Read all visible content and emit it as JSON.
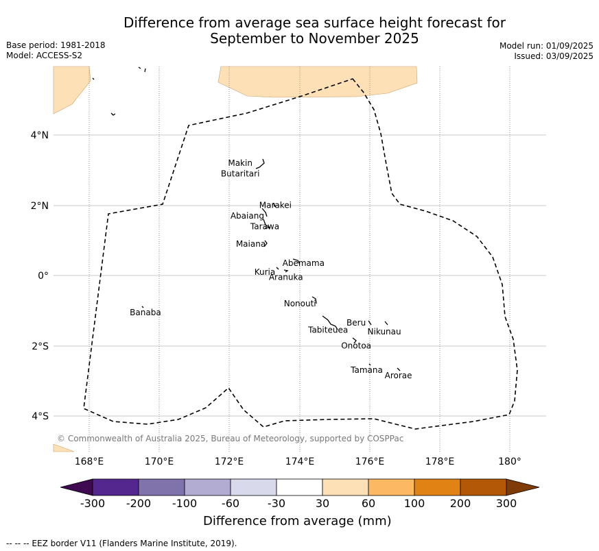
{
  "title_line1": "Difference from average sea surface height forecast for",
  "title_line2": "September to November 2025",
  "base_period": "Base period: 1981-2018",
  "model": "Model: ACCESS-S2",
  "model_run": "Model run: 01/09/2025",
  "issued": "Issued: 03/09/2025",
  "copyright": "© Commonwealth of Australia 2025, Bureau of Meteorology, supported by COSPPac",
  "lon_ticks": [
    "168°E",
    "170°E",
    "172°E",
    "174°E",
    "176°E",
    "178°E",
    "180°"
  ],
  "lat_ticks": [
    "4°N",
    "2°N",
    "0°",
    "2°S",
    "4°S"
  ],
  "places": [
    {
      "name": "Makin",
      "lon": 172.3,
      "lat": 3.2
    },
    {
      "name": "Butaritari",
      "lon": 172.3,
      "lat": 2.9
    },
    {
      "name": "Marakei",
      "lon": 173.3,
      "lat": 2.0
    },
    {
      "name": "Abaiang",
      "lon": 172.5,
      "lat": 1.7
    },
    {
      "name": "Tarawa",
      "lon": 173.0,
      "lat": 1.4
    },
    {
      "name": "Maiana",
      "lon": 172.6,
      "lat": 0.9
    },
    {
      "name": "Abemama",
      "lon": 174.1,
      "lat": 0.35
    },
    {
      "name": "Kuria",
      "lon": 173.0,
      "lat": 0.1
    },
    {
      "name": "Aranuka",
      "lon": 173.6,
      "lat": -0.05
    },
    {
      "name": "Nonouti",
      "lon": 174.0,
      "lat": -0.8
    },
    {
      "name": "Banaba",
      "lon": 169.6,
      "lat": -1.05
    },
    {
      "name": "Beru",
      "lon": 175.6,
      "lat": -1.35
    },
    {
      "name": "Nikunau",
      "lon": 176.4,
      "lat": -1.6
    },
    {
      "name": "Tabiteuea",
      "lon": 174.8,
      "lat": -1.55
    },
    {
      "name": "Onotoa",
      "lon": 175.6,
      "lat": -2.0
    },
    {
      "name": "Tamana",
      "lon": 175.9,
      "lat": -2.7
    },
    {
      "name": "Arorae",
      "lon": 176.8,
      "lat": -2.85
    }
  ],
  "colorbar": {
    "label": "Difference from average (mm)",
    "tick_labels": [
      "-300",
      "-200",
      "-100",
      "-60",
      "-30",
      "30",
      "60",
      "100",
      "200",
      "300"
    ],
    "low_color": "#3f0a52",
    "colors": [
      "#54278f",
      "#8073ac",
      "#b2abd2",
      "#d8daeb",
      "#ffffff",
      "#fee0b6",
      "#fdb863",
      "#e08214",
      "#b35806"
    ],
    "high_color": "#7f3b08"
  },
  "land_color": "#fde0b6",
  "footer": "--  --  -- EEZ border V11 (Flanders Marine Institute, 2019)."
}
